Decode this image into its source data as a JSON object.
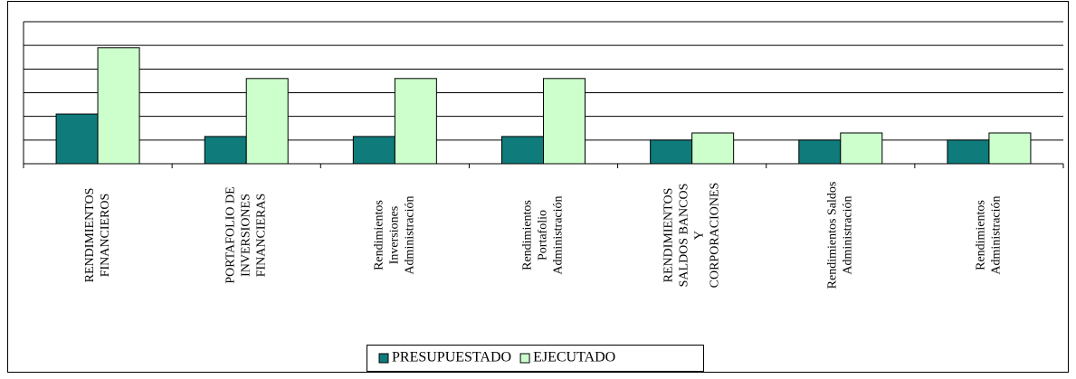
{
  "chart_data": {
    "type": "bar",
    "categories": [
      [
        "RENDIMIENTOS",
        "FINANCIEROS"
      ],
      [
        "PORTAFOLIO DE",
        "INVERSIONES",
        "FINANCIERAS"
      ],
      [
        "Rendimientos",
        "Inversiones",
        "Administración"
      ],
      [
        "Rendimientos",
        "Portafolio",
        "Administración"
      ],
      [
        "RENDIMIENTOS",
        "SALDOS BANCOS",
        "Y",
        "CORPORACIONES"
      ],
      [
        "Rendimientos Saldos",
        "Administración"
      ],
      [
        "Rendimientos",
        "Administración"
      ]
    ],
    "series": [
      {
        "name": "PRESUPUESTADO",
        "color": "#0f7b7b",
        "values": [
          2.1,
          1.15,
          1.15,
          1.15,
          1.0,
          1.0,
          1.0
        ]
      },
      {
        "name": "EJECUTADO",
        "color": "#ccffcc",
        "values": [
          4.9,
          3.6,
          3.6,
          3.6,
          1.3,
          1.3,
          1.3
        ]
      }
    ],
    "ylim": [
      0,
      6
    ],
    "yticks": [
      0,
      1,
      2,
      3,
      4,
      5,
      6
    ],
    "grid": true,
    "legend": "bottom"
  }
}
